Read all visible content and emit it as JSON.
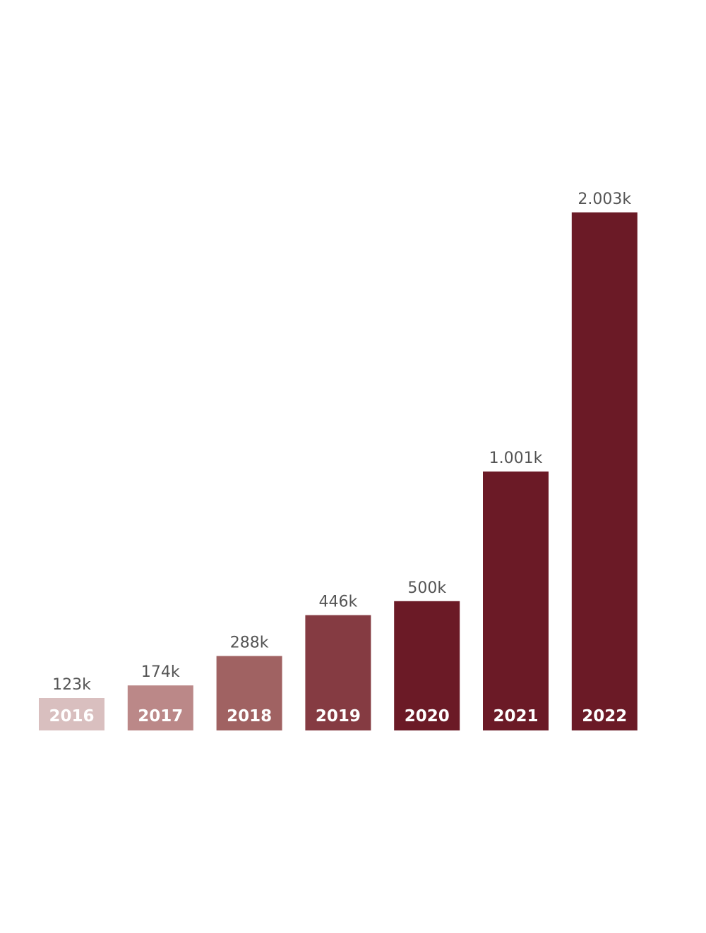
{
  "chart_data": {
    "type": "bar",
    "categories": [
      "2016",
      "2017",
      "2018",
      "2019",
      "2020",
      "2021",
      "2022"
    ],
    "values": [
      123,
      174,
      288,
      446,
      500,
      1001,
      2003
    ],
    "data_labels": [
      "123k",
      "174k",
      "288k",
      "446k",
      "500k",
      "1.001k",
      "2.003k"
    ],
    "colors": [
      "#d9bfbf",
      "#bb8888",
      "#a06262",
      "#853b42",
      "#6b1a26",
      "#6b1a26",
      "#6b1a26"
    ],
    "title": "",
    "xlabel": "",
    "ylabel": "",
    "ylim": [
      0,
      2003
    ],
    "grid": false
  }
}
